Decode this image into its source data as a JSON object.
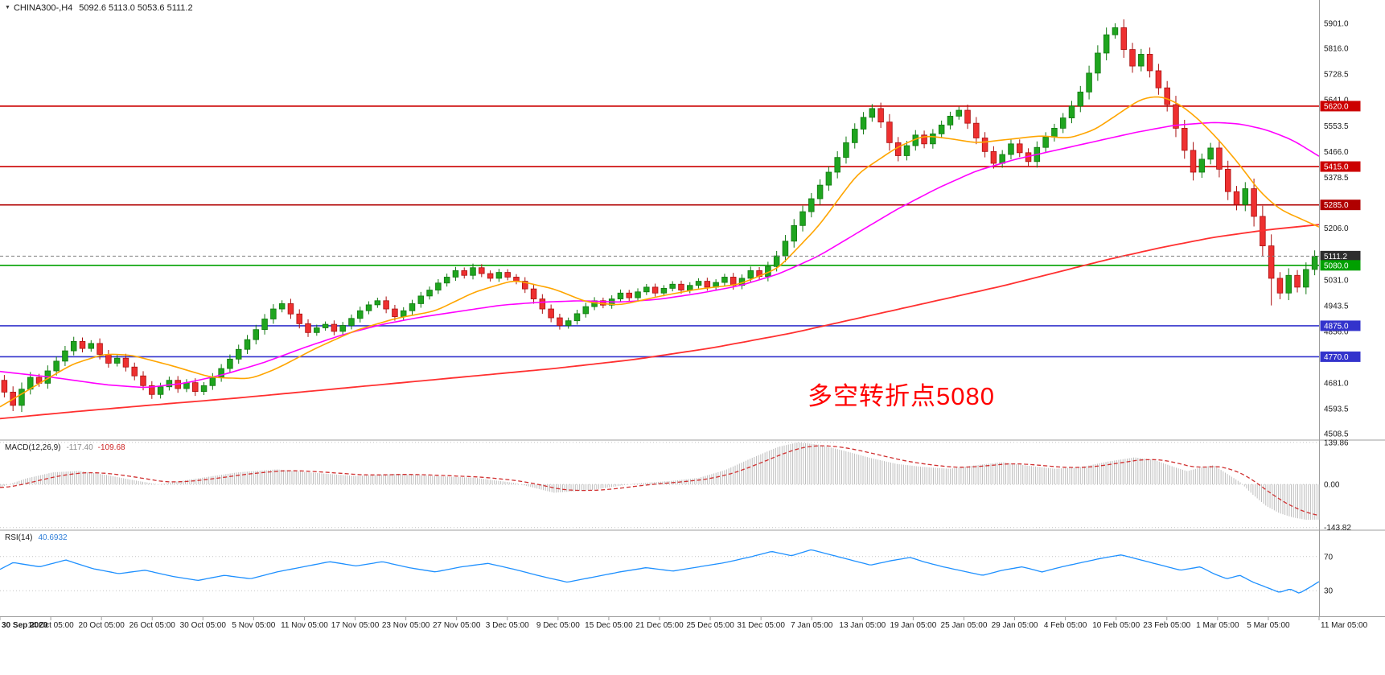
{
  "header": {
    "symbol_period": "CHINA300-,H4",
    "ohlc": "5092.6 5113.0 5053.6 5111.2"
  },
  "annotation": {
    "text": "多空转折点5080",
    "color": "#FF0000"
  },
  "indicators": {
    "macd": {
      "label": "MACD(12,26,9)",
      "value_main": "-117.40",
      "value_signal": "-109.68"
    },
    "rsi": {
      "label": "RSI(14)",
      "value": "40.6932"
    }
  },
  "colors": {
    "background": "#FFFFFF",
    "panel_border": "#9E9E9E",
    "candle_up": "#1FA51F",
    "candle_up_border": "#117811",
    "candle_down": "#EE3030",
    "candle_down_border": "#AA1111",
    "text": "#1B1B1B"
  },
  "chart_data": {
    "type": "candlestick",
    "symbol": "CHINA300-",
    "timeframe": "H4",
    "current_ohlc": {
      "open": 5092.6,
      "high": 5113.0,
      "low": 5053.6,
      "close": 5111.2
    },
    "y_axis": {
      "ylim": [
        4490,
        5980
      ],
      "ticks": [
        "5901.0",
        "5816.0",
        "5728.5",
        "5641.0",
        "5553.5",
        "5466.0",
        "5378.5",
        "5206.0",
        "5031.0",
        "4943.5",
        "4856.0",
        "4681.0",
        "4593.5",
        "4508.5"
      ]
    },
    "x_labels": [
      "30 Sep 2020",
      "14 Oct 05:00",
      "20 Oct 05:00",
      "26 Oct 05:00",
      "30 Oct 05:00",
      "5 Nov 05:00",
      "11 Nov 05:00",
      "17 Nov 05:00",
      "23 Nov 05:00",
      "27 Nov 05:00",
      "3 Dec 05:00",
      "9 Dec 05:00",
      "15 Dec 05:00",
      "21 Dec 05:00",
      "25 Dec 05:00",
      "31 Dec 05:00",
      "7 Jan 05:00",
      "13 Jan 05:00",
      "19 Jan 05:00",
      "25 Jan 05:00",
      "29 Jan 05:00",
      "4 Feb 05:00",
      "10 Feb 05:00",
      "23 Feb 05:00",
      "1 Mar 05:00",
      "5 Mar 05:00",
      "11 Mar 05:00"
    ],
    "first_open": 4690,
    "closes": [
      4650,
      4605,
      4660,
      4700,
      4680,
      4722,
      4755,
      4790,
      4822,
      4798,
      4815,
      4778,
      4748,
      4765,
      4735,
      4705,
      4672,
      4642,
      4668,
      4690,
      4662,
      4682,
      4652,
      4672,
      4700,
      4730,
      4762,
      4795,
      4828,
      4862,
      4898,
      4932,
      4950,
      4915,
      4882,
      4852,
      4868,
      4880,
      4856,
      4876,
      4900,
      4926,
      4946,
      4960,
      4932,
      4906,
      4926,
      4950,
      4976,
      4996,
      5020,
      5040,
      5062,
      5046,
      5072,
      5052,
      5036,
      5056,
      5040,
      5026,
      5000,
      4966,
      4932,
      4902,
      4876,
      4892,
      4916,
      4940,
      4960,
      4945,
      4966,
      4986,
      4970,
      4990,
      5006,
      4986,
      5002,
      5016,
      4996,
      5012,
      5026,
      5006,
      5022,
      5040,
      5012,
      5036,
      5062,
      5042,
      5076,
      5112,
      5162,
      5215,
      5262,
      5306,
      5352,
      5396,
      5446,
      5496,
      5542,
      5582,
      5612,
      5566,
      5496,
      5452,
      5486,
      5522,
      5492,
      5526,
      5556,
      5586,
      5606,
      5562,
      5512,
      5466,
      5426,
      5456,
      5492,
      5462,
      5432,
      5480,
      5515,
      5545,
      5580,
      5620,
      5668,
      5732,
      5800,
      5862,
      5886,
      5812,
      5756,
      5796,
      5740,
      5682,
      5625,
      5545,
      5470,
      5396,
      5440,
      5478,
      5406,
      5330,
      5286,
      5340,
      5246,
      5146,
      5036,
      4986,
      5046,
      5006,
      5066,
      5111.2
    ],
    "extremes": [
      {
        "index": 128,
        "high": 5901.0
      },
      {
        "index": 146,
        "low": 4944.0
      }
    ],
    "hlines": [
      {
        "price": 5620.0,
        "label": "5620.0",
        "color": "#CC0000",
        "style": "solid"
      },
      {
        "price": 5415.0,
        "label": "5415.0",
        "color": "#CC0000",
        "style": "solid"
      },
      {
        "price": 5285.0,
        "label": "5285.0",
        "color": "#B00000",
        "style": "solid"
      },
      {
        "price": 5111.2,
        "label": "5111.2",
        "color": "#808080",
        "bg": "#2E2E2E",
        "style": "dash"
      },
      {
        "price": 5080.0,
        "label": "5080.0",
        "color": "#00A000",
        "style": "solid"
      },
      {
        "price": 4875.0,
        "label": "4875.0",
        "color": "#3333CC",
        "style": "solid"
      },
      {
        "price": 4770.0,
        "label": "4770.0",
        "color": "#3333CC",
        "style": "solid"
      }
    ],
    "moving_averages": [
      {
        "name": "ma-slow",
        "color": "#FF3030",
        "width": 1.8,
        "anchors": [
          [
            0,
            4560
          ],
          [
            0.06,
            4585
          ],
          [
            0.12,
            4608
          ],
          [
            0.18,
            4630
          ],
          [
            0.24,
            4655
          ],
          [
            0.3,
            4680
          ],
          [
            0.36,
            4705
          ],
          [
            0.42,
            4730
          ],
          [
            0.48,
            4760
          ],
          [
            0.54,
            4800
          ],
          [
            0.6,
            4850
          ],
          [
            0.64,
            4890
          ],
          [
            0.68,
            4930
          ],
          [
            0.72,
            4970
          ],
          [
            0.76,
            5010
          ],
          [
            0.8,
            5055
          ],
          [
            0.84,
            5100
          ],
          [
            0.88,
            5140
          ],
          [
            0.92,
            5175
          ],
          [
            0.96,
            5200
          ],
          [
            1,
            5218
          ]
        ]
      },
      {
        "name": "ma-mid",
        "color": "#FF00FF",
        "width": 1.6,
        "anchors": [
          [
            0,
            4720
          ],
          [
            0.04,
            4700
          ],
          [
            0.08,
            4675
          ],
          [
            0.11,
            4665
          ],
          [
            0.14,
            4680
          ],
          [
            0.17,
            4710
          ],
          [
            0.2,
            4750
          ],
          [
            0.23,
            4800
          ],
          [
            0.26,
            4845
          ],
          [
            0.29,
            4880
          ],
          [
            0.32,
            4905
          ],
          [
            0.35,
            4925
          ],
          [
            0.38,
            4945
          ],
          [
            0.41,
            4955
          ],
          [
            0.44,
            4960
          ],
          [
            0.47,
            4955
          ],
          [
            0.5,
            4965
          ],
          [
            0.53,
            4985
          ],
          [
            0.56,
            5010
          ],
          [
            0.59,
            5050
          ],
          [
            0.62,
            5110
          ],
          [
            0.65,
            5190
          ],
          [
            0.68,
            5270
          ],
          [
            0.71,
            5340
          ],
          [
            0.74,
            5400
          ],
          [
            0.77,
            5440
          ],
          [
            0.8,
            5470
          ],
          [
            0.83,
            5500
          ],
          [
            0.86,
            5530
          ],
          [
            0.89,
            5555
          ],
          [
            0.92,
            5565
          ],
          [
            0.94,
            5560
          ],
          [
            0.96,
            5540
          ],
          [
            0.98,
            5505
          ],
          [
            1,
            5450
          ]
        ]
      },
      {
        "name": "ma-fast",
        "color": "#FFA500",
        "width": 1.6,
        "anchors": [
          [
            0,
            4600
          ],
          [
            0.03,
            4680
          ],
          [
            0.055,
            4745
          ],
          [
            0.08,
            4780
          ],
          [
            0.1,
            4775
          ],
          [
            0.13,
            4740
          ],
          [
            0.16,
            4700
          ],
          [
            0.19,
            4695
          ],
          [
            0.21,
            4730
          ],
          [
            0.24,
            4800
          ],
          [
            0.27,
            4860
          ],
          [
            0.3,
            4900
          ],
          [
            0.33,
            4925
          ],
          [
            0.36,
            4990
          ],
          [
            0.39,
            5030
          ],
          [
            0.42,
            5000
          ],
          [
            0.445,
            4955
          ],
          [
            0.47,
            4945
          ],
          [
            0.5,
            4975
          ],
          [
            0.53,
            5000
          ],
          [
            0.56,
            5015
          ],
          [
            0.59,
            5070
          ],
          [
            0.62,
            5210
          ],
          [
            0.65,
            5390
          ],
          [
            0.68,
            5480
          ],
          [
            0.7,
            5520
          ],
          [
            0.72,
            5510
          ],
          [
            0.74,
            5495
          ],
          [
            0.76,
            5505
          ],
          [
            0.79,
            5520
          ],
          [
            0.81,
            5510
          ],
          [
            0.83,
            5540
          ],
          [
            0.85,
            5600
          ],
          [
            0.865,
            5645
          ],
          [
            0.88,
            5655
          ],
          [
            0.895,
            5625
          ],
          [
            0.91,
            5570
          ],
          [
            0.925,
            5500
          ],
          [
            0.94,
            5420
          ],
          [
            0.955,
            5330
          ],
          [
            0.97,
            5270
          ],
          [
            0.985,
            5240
          ],
          [
            1,
            5210
          ]
        ]
      }
    ],
    "macd": {
      "ylim": [
        -150,
        145
      ],
      "axis_ticks": [
        "139.86",
        "0.00",
        "-143.82"
      ],
      "histogram_color": "#BDBDBD",
      "signal_color": "#D03030",
      "anchors": [
        [
          0,
          -10
        ],
        [
          0.02,
          20
        ],
        [
          0.04,
          40
        ],
        [
          0.06,
          45
        ],
        [
          0.08,
          32
        ],
        [
          0.1,
          15
        ],
        [
          0.12,
          0
        ],
        [
          0.15,
          20
        ],
        [
          0.18,
          40
        ],
        [
          0.21,
          50
        ],
        [
          0.24,
          38
        ],
        [
          0.27,
          28
        ],
        [
          0.3,
          35
        ],
        [
          0.33,
          28
        ],
        [
          0.36,
          22
        ],
        [
          0.39,
          5
        ],
        [
          0.42,
          -28
        ],
        [
          0.45,
          -18
        ],
        [
          0.48,
          2
        ],
        [
          0.51,
          12
        ],
        [
          0.53,
          22
        ],
        [
          0.55,
          48
        ],
        [
          0.57,
          88
        ],
        [
          0.59,
          125
        ],
        [
          0.605,
          140
        ],
        [
          0.62,
          133
        ],
        [
          0.64,
          112
        ],
        [
          0.66,
          88
        ],
        [
          0.68,
          68
        ],
        [
          0.7,
          58
        ],
        [
          0.72,
          52
        ],
        [
          0.74,
          64
        ],
        [
          0.76,
          74
        ],
        [
          0.78,
          62
        ],
        [
          0.8,
          52
        ],
        [
          0.82,
          58
        ],
        [
          0.84,
          76
        ],
        [
          0.86,
          90
        ],
        [
          0.875,
          82
        ],
        [
          0.89,
          58
        ],
        [
          0.9,
          44
        ],
        [
          0.91,
          56
        ],
        [
          0.92,
          64
        ],
        [
          0.93,
          36
        ],
        [
          0.94,
          8
        ],
        [
          0.95,
          -35
        ],
        [
          0.96,
          -72
        ],
        [
          0.97,
          -96
        ],
        [
          0.98,
          -110
        ],
        [
          0.99,
          -118
        ],
        [
          1,
          -117.4
        ]
      ]
    },
    "rsi": {
      "ylim": [
        0,
        100
      ],
      "levels": [
        "70",
        "30"
      ],
      "color": "#1E90FF",
      "anchors": [
        [
          0,
          55
        ],
        [
          0.01,
          63
        ],
        [
          0.03,
          58
        ],
        [
          0.05,
          66
        ],
        [
          0.07,
          56
        ],
        [
          0.09,
          50
        ],
        [
          0.11,
          54
        ],
        [
          0.13,
          47
        ],
        [
          0.15,
          42
        ],
        [
          0.17,
          48
        ],
        [
          0.19,
          44
        ],
        [
          0.21,
          52
        ],
        [
          0.23,
          58
        ],
        [
          0.25,
          64
        ],
        [
          0.27,
          59
        ],
        [
          0.29,
          64
        ],
        [
          0.31,
          57
        ],
        [
          0.33,
          52
        ],
        [
          0.35,
          58
        ],
        [
          0.37,
          62
        ],
        [
          0.39,
          55
        ],
        [
          0.41,
          47
        ],
        [
          0.43,
          40
        ],
        [
          0.45,
          46
        ],
        [
          0.47,
          52
        ],
        [
          0.49,
          57
        ],
        [
          0.51,
          53
        ],
        [
          0.53,
          58
        ],
        [
          0.55,
          63
        ],
        [
          0.57,
          70
        ],
        [
          0.585,
          76
        ],
        [
          0.6,
          71
        ],
        [
          0.615,
          78
        ],
        [
          0.63,
          72
        ],
        [
          0.645,
          66
        ],
        [
          0.66,
          60
        ],
        [
          0.675,
          65
        ],
        [
          0.69,
          69
        ],
        [
          0.7,
          64
        ],
        [
          0.715,
          58
        ],
        [
          0.73,
          53
        ],
        [
          0.745,
          48
        ],
        [
          0.76,
          54
        ],
        [
          0.775,
          58
        ],
        [
          0.79,
          52
        ],
        [
          0.805,
          58
        ],
        [
          0.82,
          63
        ],
        [
          0.835,
          68
        ],
        [
          0.85,
          72
        ],
        [
          0.865,
          66
        ],
        [
          0.88,
          60
        ],
        [
          0.895,
          54
        ],
        [
          0.91,
          58
        ],
        [
          0.92,
          50
        ],
        [
          0.93,
          44
        ],
        [
          0.94,
          48
        ],
        [
          0.95,
          40
        ],
        [
          0.96,
          34
        ],
        [
          0.97,
          28
        ],
        [
          0.978,
          32
        ],
        [
          0.985,
          27
        ],
        [
          0.992,
          33
        ],
        [
          1,
          40.69
        ]
      ]
    }
  }
}
